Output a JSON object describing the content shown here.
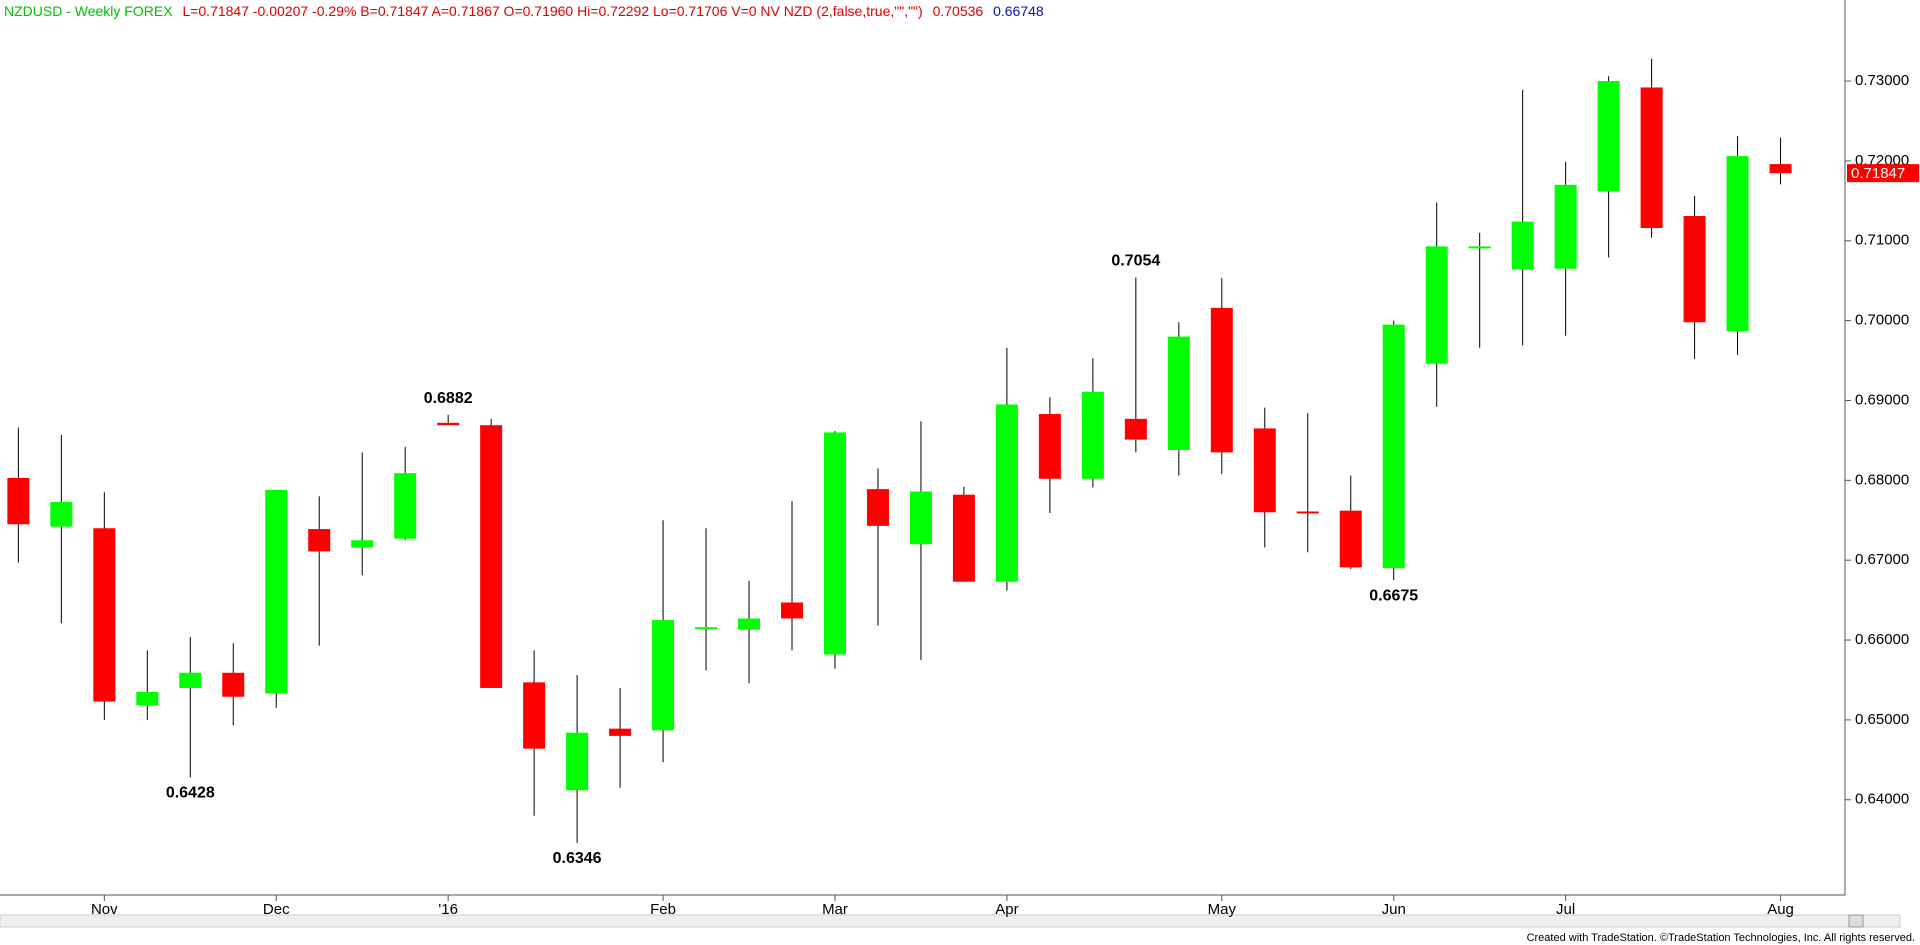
{
  "chart_data": {
    "type": "candlestick",
    "title": "NZDUSD - Weekly FOREX",
    "subtitle": "L=0.71847 -0.00207 -0.29% B=0.71847 A=0.71867 O=0.71960 Hi=0.72292 Lo=0.71706 V=0 NV NZD (2,false,true,\"\",\"\")",
    "indicator_values": [
      0.70536,
      0.66748
    ],
    "indicator_colors": [
      "#e00000",
      "#1010a0"
    ],
    "title_color": "#00c000",
    "subtitle_color": "#e00000",
    "up_color": "#00ff00",
    "down_color": "#ff0000",
    "categories": [
      null,
      null,
      "Nov",
      null,
      null,
      null,
      "Dec",
      null,
      null,
      null,
      "'16",
      null,
      null,
      null,
      null,
      "Feb",
      null,
      null,
      null,
      "Mar",
      null,
      null,
      null,
      "Apr",
      null,
      null,
      null,
      null,
      "May",
      null,
      null,
      null,
      "Jun",
      null,
      null,
      null,
      "Jul",
      null,
      null,
      null,
      null,
      "Aug"
    ],
    "open": [
      0.6803,
      0.6742,
      0.674,
      0.6518,
      0.654,
      0.6559,
      0.6533,
      0.6739,
      0.6716,
      0.6727,
      0.6872,
      0.6869,
      0.6547,
      0.6412,
      0.6489,
      0.6487,
      0.6615,
      0.6613,
      0.6647,
      0.6582,
      0.6789,
      0.672,
      0.6782,
      0.6673,
      0.6883,
      0.6802,
      0.6877,
      0.6838,
      0.7016,
      0.6865,
      0.6761,
      0.6762,
      0.669,
      0.6946,
      0.7092,
      0.7064,
      0.7065,
      0.7162,
      0.7292,
      0.7131,
      0.6987,
      0.7196
    ],
    "high": [
      0.6866,
      0.6857,
      0.6785,
      0.6587,
      0.6604,
      0.6596,
      0.6786,
      0.678,
      0.6835,
      0.6842,
      0.6882,
      0.6877,
      0.6587,
      0.6556,
      0.654,
      0.675,
      0.674,
      0.6674,
      0.6774,
      0.6862,
      0.6815,
      0.6874,
      0.6792,
      0.6966,
      0.6904,
      0.6953,
      0.7054,
      0.6998,
      0.7053,
      0.6891,
      0.6884,
      0.6806,
      0.7,
      0.7148,
      0.711,
      0.7289,
      0.7199,
      0.7306,
      0.7328,
      0.7156,
      0.7231,
      0.72292
    ],
    "low": [
      0.6697,
      0.6621,
      0.65,
      0.65,
      0.6428,
      0.6493,
      0.6515,
      0.6593,
      0.6681,
      0.6725,
      0.6869,
      0.654,
      0.638,
      0.6346,
      0.6415,
      0.6447,
      0.6562,
      0.6546,
      0.6587,
      0.6564,
      0.6618,
      0.6575,
      0.6673,
      0.6662,
      0.6759,
      0.6791,
      0.6835,
      0.6806,
      0.6808,
      0.6716,
      0.671,
      0.6689,
      0.6675,
      0.6892,
      0.6966,
      0.6969,
      0.6981,
      0.7079,
      0.7104,
      0.6952,
      0.6957,
      0.71706
    ],
    "close": [
      0.6745,
      0.6773,
      0.6523,
      0.6535,
      0.6559,
      0.6529,
      0.6788,
      0.6711,
      0.6725,
      0.6809,
      0.6869,
      0.654,
      0.6464,
      0.6484,
      0.648,
      0.6625,
      0.6616,
      0.6627,
      0.6627,
      0.686,
      0.6743,
      0.6786,
      0.6673,
      0.6895,
      0.6802,
      0.6911,
      0.6851,
      0.698,
      0.6835,
      0.676,
      0.676,
      0.6691,
      0.6995,
      0.7093,
      0.7093,
      0.7124,
      0.717,
      0.73,
      0.7116,
      0.6998,
      0.7206,
      0.71847
    ],
    "annotations": [
      0.6882,
      0.6428,
      0.6346,
      0.7054,
      0.6675
    ],
    "ylim": [
      0.6297,
      0.7394
    ],
    "yticks": [
      {
        "value": 0.64,
        "label": "0.64000"
      },
      {
        "value": 0.65,
        "label": "0.65000"
      },
      {
        "value": 0.66,
        "label": "0.66000"
      },
      {
        "value": 0.67,
        "label": "0.67000"
      },
      {
        "value": 0.68,
        "label": "0.68000"
      },
      {
        "value": 0.69,
        "label": "0.69000"
      },
      {
        "value": 0.7,
        "label": "0.70000"
      },
      {
        "value": 0.71,
        "label": "0.71000"
      },
      {
        "value": 0.72,
        "label": "0.72000"
      },
      {
        "value": 0.73,
        "label": "0.73000"
      }
    ],
    "footer": "Created with TradeStation. ©TradeStation Technologies, Inc. All rights reserved."
  }
}
